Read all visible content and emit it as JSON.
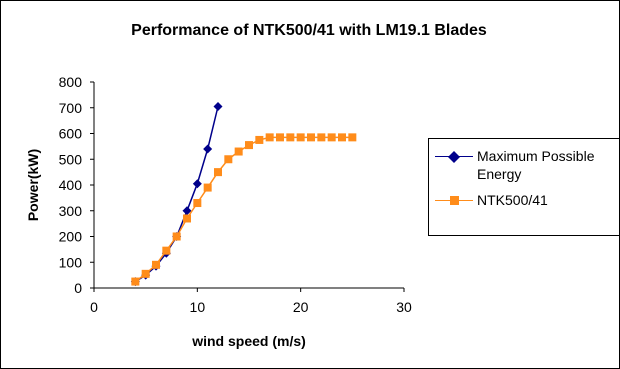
{
  "chart_data": {
    "type": "line",
    "title": "Performance of NTK500/41 with LM19.1 Blades",
    "xlabel": "wind speed (m/s)",
    "ylabel": "Power(kW)",
    "xlim": [
      0,
      30
    ],
    "ylim": [
      0,
      800
    ],
    "xticks": [
      0,
      10,
      20,
      30
    ],
    "yticks": [
      0,
      100,
      200,
      300,
      400,
      500,
      600,
      700,
      800
    ],
    "grid": false,
    "legend_position": "right",
    "series": [
      {
        "name": "Maximum Possible Energy",
        "color": "#00008B",
        "marker": "diamond",
        "x": [
          4,
          5,
          6,
          7,
          8,
          9,
          10,
          11,
          12
        ],
        "y": [
          25,
          50,
          85,
          135,
          200,
          300,
          405,
          540,
          705
        ]
      },
      {
        "name": "NTK500/41",
        "color": "#FF8C1A",
        "marker": "square",
        "x": [
          4,
          5,
          6,
          7,
          8,
          9,
          10,
          11,
          12,
          13,
          14,
          15,
          16,
          17,
          18,
          19,
          20,
          21,
          22,
          23,
          24,
          25
        ],
        "y": [
          25,
          55,
          90,
          145,
          200,
          270,
          330,
          390,
          450,
          500,
          530,
          555,
          575,
          585,
          585,
          585,
          585,
          585,
          585,
          585,
          585,
          585
        ]
      }
    ]
  }
}
